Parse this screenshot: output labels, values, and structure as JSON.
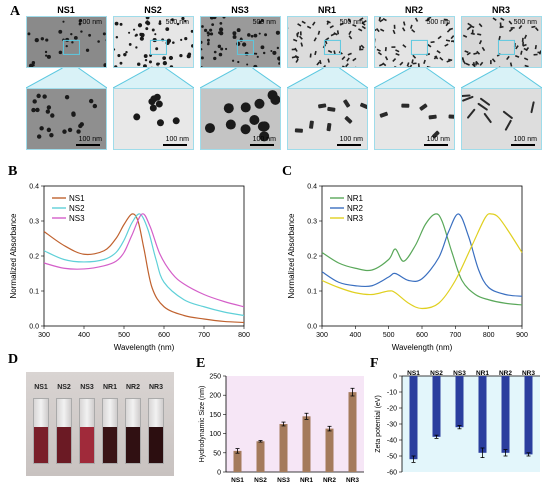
{
  "panels": {
    "A": "A",
    "B": "B",
    "C": "C",
    "D": "D",
    "E": "E",
    "F": "F"
  },
  "tem": {
    "labels": [
      "NS1",
      "NS2",
      "NS3",
      "NR1",
      "NR2",
      "NR3"
    ],
    "top_scales": [
      "200 nm",
      "500 nm",
      "500 nm",
      "500 nm",
      "500 nm",
      "500 nm"
    ],
    "bottom_scales": [
      "100 nm",
      "100 nm",
      "100 nm",
      "100 nm",
      "100 nm",
      "100 nm"
    ]
  },
  "colors": {
    "NS1": "#c0622f",
    "NS2": "#5fd0d8",
    "NS3": "#d45fc9",
    "NR1": "#5aa85a",
    "NR2": "#3a6fc0",
    "NR3": "#e0d020",
    "bar_E": "#a47b5c",
    "bar_F": "#2b3e9e",
    "bg_E": "#f6e6f6",
    "bg_F": "#e3f6fb",
    "teal": "#9fdcea"
  },
  "cuvettes": {
    "labels": [
      "NS1",
      "NS2",
      "NS3",
      "NR1",
      "NR2",
      "NR3"
    ],
    "liquid_colors": [
      "#7a1f2a",
      "#6b1a24",
      "#a02a3a",
      "#3a1416",
      "#301012",
      "#2c0e10"
    ]
  },
  "chart_data": [
    {
      "id": "B",
      "type": "line",
      "xlabel": "Wavelength (nm)",
      "ylabel": "Normalized Absorbance",
      "xlim": [
        300,
        800
      ],
      "ylim": [
        0,
        0.4
      ],
      "xticks": [
        300,
        400,
        500,
        600,
        700,
        800
      ],
      "yticks": [
        0.0,
        0.1,
        0.2,
        0.3,
        0.4
      ],
      "legend_position": "top-left",
      "series": [
        {
          "name": "NS1",
          "x": [
            300,
            350,
            400,
            450,
            480,
            500,
            520,
            535,
            550,
            570,
            600,
            650,
            700,
            750,
            800
          ],
          "y": [
            0.27,
            0.23,
            0.205,
            0.215,
            0.25,
            0.29,
            0.32,
            0.3,
            0.22,
            0.11,
            0.055,
            0.03,
            0.02,
            0.013,
            0.01
          ]
        },
        {
          "name": "NS2",
          "x": [
            300,
            350,
            400,
            450,
            480,
            500,
            520,
            540,
            560,
            580,
            600,
            650,
            700,
            750,
            800
          ],
          "y": [
            0.215,
            0.19,
            0.183,
            0.19,
            0.21,
            0.245,
            0.295,
            0.32,
            0.275,
            0.19,
            0.125,
            0.075,
            0.055,
            0.04,
            0.03
          ]
        },
        {
          "name": "NS3",
          "x": [
            300,
            350,
            400,
            450,
            480,
            500,
            520,
            545,
            565,
            590,
            620,
            650,
            700,
            750,
            800
          ],
          "y": [
            0.18,
            0.165,
            0.163,
            0.172,
            0.185,
            0.21,
            0.26,
            0.32,
            0.285,
            0.205,
            0.15,
            0.12,
            0.09,
            0.07,
            0.055
          ]
        }
      ]
    },
    {
      "id": "C",
      "type": "line",
      "xlabel": "Wavelength (nm)",
      "ylabel": "Normalized Absorbance",
      "xlim": [
        300,
        900
      ],
      "ylim": [
        0,
        0.4
      ],
      "xticks": [
        300,
        400,
        500,
        600,
        700,
        800,
        900
      ],
      "yticks": [
        0.0,
        0.1,
        0.2,
        0.3,
        0.4
      ],
      "legend_position": "top-left",
      "series": [
        {
          "name": "NR1",
          "x": [
            300,
            350,
            400,
            450,
            500,
            520,
            545,
            580,
            610,
            640,
            660,
            690,
            720,
            760,
            800,
            850,
            900
          ],
          "y": [
            0.21,
            0.18,
            0.165,
            0.16,
            0.19,
            0.22,
            0.185,
            0.23,
            0.29,
            0.32,
            0.3,
            0.21,
            0.13,
            0.09,
            0.075,
            0.065,
            0.06
          ]
        },
        {
          "name": "NR2",
          "x": [
            300,
            350,
            400,
            450,
            500,
            520,
            560,
            600,
            650,
            680,
            710,
            740,
            770,
            800,
            850,
            900
          ],
          "y": [
            0.155,
            0.125,
            0.115,
            0.115,
            0.14,
            0.15,
            0.13,
            0.135,
            0.195,
            0.27,
            0.32,
            0.255,
            0.16,
            0.11,
            0.09,
            0.085
          ]
        },
        {
          "name": "NR3",
          "x": [
            300,
            350,
            400,
            450,
            500,
            520,
            560,
            600,
            650,
            700,
            750,
            790,
            810,
            830,
            860,
            900
          ],
          "y": [
            0.13,
            0.11,
            0.095,
            0.09,
            0.1,
            0.095,
            0.065,
            0.05,
            0.065,
            0.13,
            0.23,
            0.31,
            0.32,
            0.31,
            0.27,
            0.21
          ]
        }
      ]
    },
    {
      "id": "E",
      "type": "bar",
      "ylabel": "Hydrodynamic Size (nm)",
      "categories": [
        "NS1",
        "NS2",
        "NS3",
        "NR1",
        "NR2",
        "NR3"
      ],
      "values": [
        55,
        80,
        125,
        145,
        113,
        208
      ],
      "errors": [
        6,
        2,
        5,
        8,
        6,
        10
      ],
      "ylim": [
        0,
        250
      ],
      "yticks": [
        0,
        50,
        100,
        150,
        200,
        250
      ]
    },
    {
      "id": "F",
      "type": "bar",
      "ylabel": "Zeta potential (eV)",
      "categories": [
        "NS1",
        "NS2",
        "NS3",
        "NR1",
        "NR2",
        "NR3"
      ],
      "values": [
        -52,
        -38,
        -32,
        -48,
        -48,
        -49
      ],
      "errors": [
        2,
        1,
        1,
        3,
        2,
        1
      ],
      "ylim": [
        -60,
        0
      ],
      "yticks": [
        0,
        -10,
        -20,
        -30,
        -40,
        -50,
        -60
      ]
    }
  ]
}
